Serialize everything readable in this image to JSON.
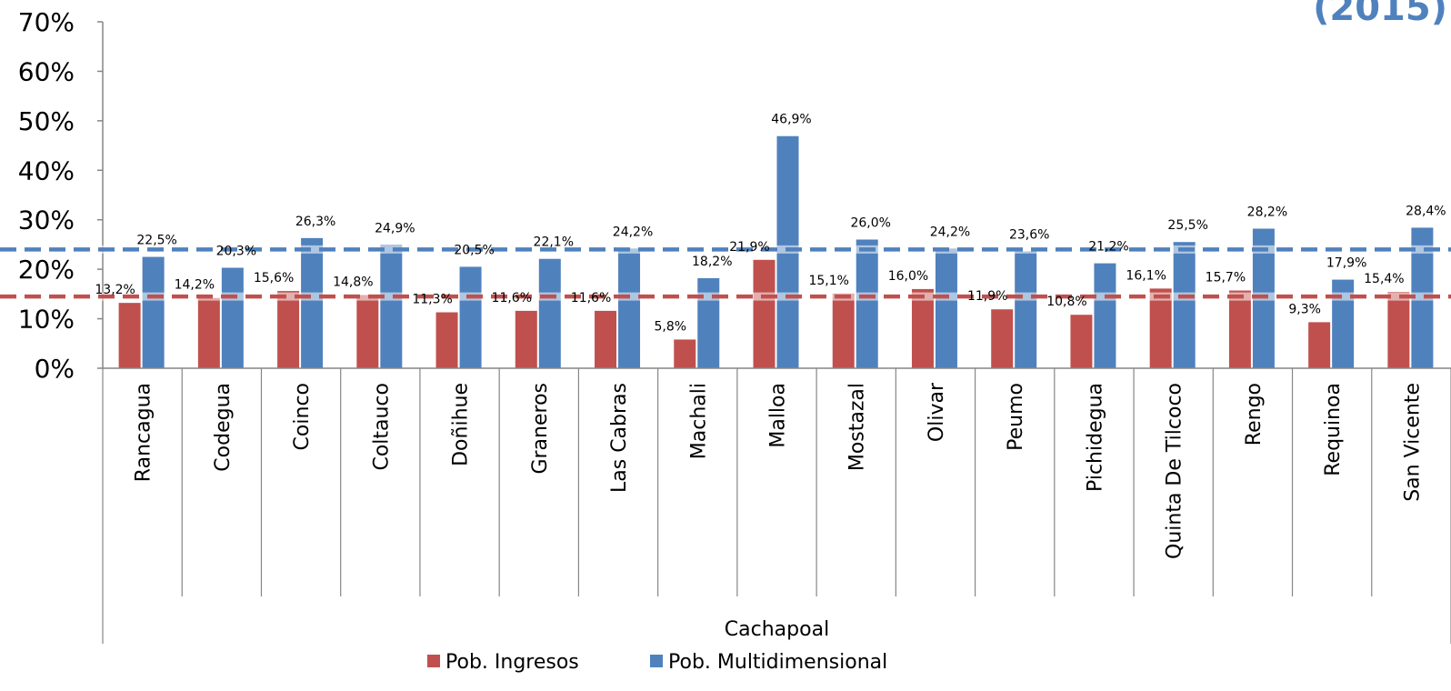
{
  "corner_title": "(2015)",
  "chart_data": {
    "type": "bar",
    "group_label": "Cachapoal",
    "categories": [
      "Rancagua",
      "Codegua",
      "Coinco",
      "Coltauco",
      "Doñihue",
      "Graneros",
      "Las Cabras",
      "Machali",
      "Malloa",
      "Mostazal",
      "Olivar",
      "Peumo",
      "Pichidegua",
      "Quinta De Tilcoco",
      "Rengo",
      "Requinoa",
      "San Vicente"
    ],
    "series": [
      {
        "name": "Pob. Ingresos",
        "color": "#c0504d",
        "values": [
          13.2,
          14.2,
          15.6,
          14.8,
          11.3,
          11.6,
          11.6,
          5.8,
          21.9,
          15.1,
          16.0,
          11.9,
          10.8,
          16.1,
          15.7,
          9.3,
          15.4
        ],
        "labels": [
          "13,2%",
          "14,2%",
          "15,6%",
          "14,8%",
          "11,3%",
          "11,6%",
          "11,6%",
          "5,8%",
          "21,9%",
          "15,1%",
          "16,0%",
          "11,9%",
          "10,8%",
          "16,1%",
          "15,7%",
          "9,3%",
          "15,4%"
        ]
      },
      {
        "name": "Pob. Multidimensional",
        "color": "#4f81bd",
        "values": [
          22.5,
          20.3,
          26.3,
          24.9,
          20.5,
          22.1,
          24.2,
          18.2,
          46.9,
          26.0,
          24.2,
          23.6,
          21.2,
          25.5,
          28.2,
          17.9,
          28.4
        ],
        "labels": [
          "22,5%",
          "20,3%",
          "26,3%",
          "24,9%",
          "20,5%",
          "22,1%",
          "24,2%",
          "18,2%",
          "46,9%",
          "26,0%",
          "24,2%",
          "23,6%",
          "21,2%",
          "25,5%",
          "28,2%",
          "17,9%",
          "28,4%"
        ]
      }
    ],
    "reference_lines": [
      {
        "value": 24.0,
        "color": "#4f81bd"
      },
      {
        "value": 14.5,
        "color": "#c0504d"
      }
    ],
    "ylim": [
      0,
      70
    ],
    "yticks": [
      0,
      10,
      20,
      30,
      40,
      50,
      60,
      70
    ],
    "ytick_labels": [
      "0%",
      "10%",
      "20%",
      "30%",
      "40%",
      "50%",
      "60%",
      "70%"
    ],
    "legend_position": "bottom"
  }
}
